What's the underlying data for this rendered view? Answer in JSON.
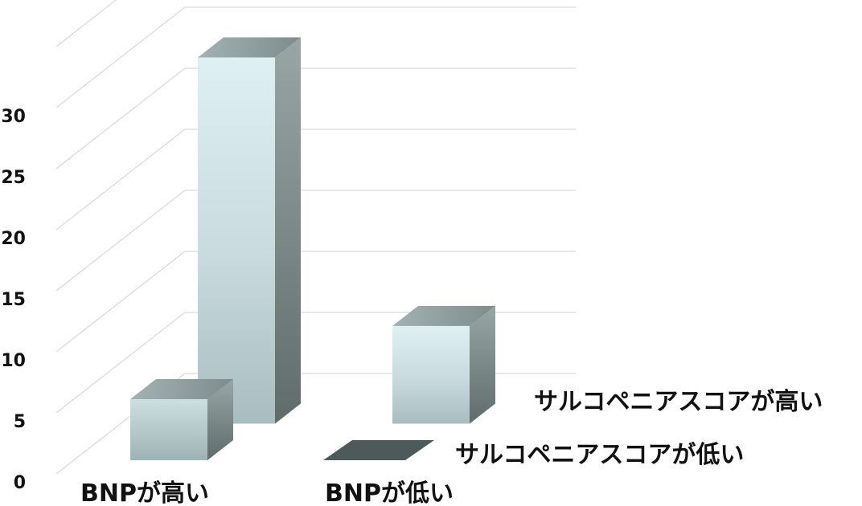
{
  "chart_data": {
    "type": "bar",
    "style": "3d-clustered",
    "categories": [
      "BNPが高い",
      "BNPが低い"
    ],
    "series": [
      {
        "name": "サルコペニアスコアが高い",
        "values": [
          30,
          8
        ],
        "color": "#cfe3e6"
      },
      {
        "name": "サルコペニアスコアが低い",
        "values": [
          5,
          0
        ],
        "color": "#b9ccce"
      }
    ],
    "yticks": [
      0,
      5,
      10,
      15,
      20,
      25,
      30
    ],
    "ylim": [
      0,
      35
    ],
    "grid": true,
    "legend_placement": "right"
  }
}
